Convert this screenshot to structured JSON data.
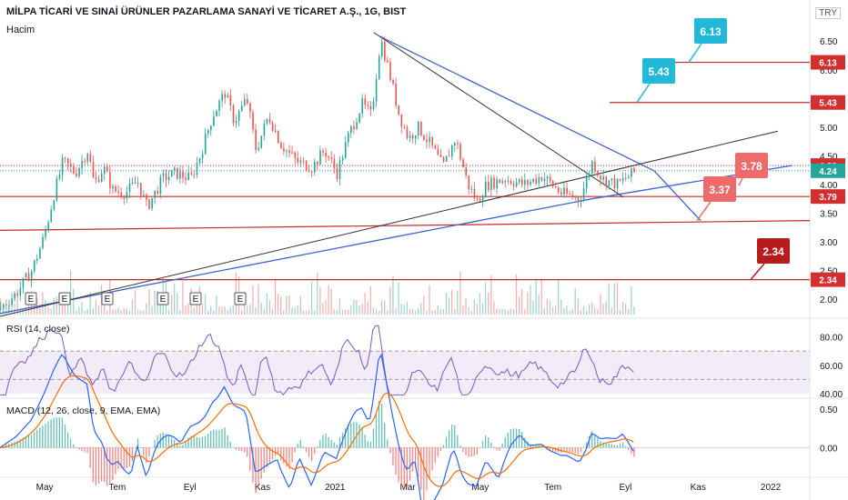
{
  "header": {
    "title": "MİLPA TİCARİ VE SINAİ ÜRÜNLER PAZARLAMA SANAYİ VE TİCARET A.Ş., 1G, BIST",
    "volume_label": "Hacim",
    "currency": "TRY"
  },
  "panes": {
    "rsi_label": "RSI (14, close)",
    "macd_label": "MACD (12, 26, close, 9, EMA, EMA)"
  },
  "chart_data": {
    "type": "line",
    "price_axis": {
      "ticks": [
        "6.50",
        "6.00",
        "5.50",
        "5.00",
        "4.50",
        "4.00",
        "3.50",
        "3.00",
        "2.50",
        "2.00"
      ],
      "range": [
        1.7,
        6.9
      ]
    },
    "rsi_axis": {
      "ticks": [
        "80.00",
        "60.00",
        "40.00"
      ],
      "range": [
        38,
        92
      ],
      "bands": [
        70,
        50
      ]
    },
    "macd_axis": {
      "ticks": [
        "0.50",
        "0.00"
      ],
      "range": [
        -0.35,
        0.62
      ]
    },
    "time_axis": [
      "May",
      "Tem",
      "Eyl",
      "Kas",
      "2021",
      "Mar",
      "May",
      "Tem",
      "Eyl",
      "Kas",
      "2022"
    ],
    "price_series": [
      {
        "t": 0,
        "v": 1.85
      },
      {
        "t": 5,
        "v": 2.1
      },
      {
        "t": 10,
        "v": 2.5
      },
      {
        "t": 14,
        "v": 3.1
      },
      {
        "t": 17,
        "v": 3.8
      },
      {
        "t": 20,
        "v": 4.4
      },
      {
        "t": 24,
        "v": 4.2
      },
      {
        "t": 28,
        "v": 4.6
      },
      {
        "t": 30,
        "v": 4.0
      },
      {
        "t": 33,
        "v": 4.3
      },
      {
        "t": 36,
        "v": 3.9
      },
      {
        "t": 40,
        "v": 3.85
      },
      {
        "t": 44,
        "v": 4.05
      },
      {
        "t": 47,
        "v": 3.6
      },
      {
        "t": 52,
        "v": 4.1
      },
      {
        "t": 56,
        "v": 4.2
      },
      {
        "t": 61,
        "v": 4.1
      },
      {
        "t": 64,
        "v": 4.5
      },
      {
        "t": 68,
        "v": 5.2
      },
      {
        "t": 72,
        "v": 5.6
      },
      {
        "t": 75,
        "v": 5.1
      },
      {
        "t": 79,
        "v": 5.5
      },
      {
        "t": 82,
        "v": 4.6
      },
      {
        "t": 86,
        "v": 5.2
      },
      {
        "t": 90,
        "v": 4.7
      },
      {
        "t": 95,
        "v": 4.4
      },
      {
        "t": 100,
        "v": 4.3
      },
      {
        "t": 104,
        "v": 4.6
      },
      {
        "t": 108,
        "v": 4.2
      },
      {
        "t": 112,
        "v": 4.9
      },
      {
        "t": 116,
        "v": 5.4
      },
      {
        "t": 119,
        "v": 5.2
      },
      {
        "t": 122,
        "v": 6.55
      },
      {
        "t": 125,
        "v": 5.9
      },
      {
        "t": 128,
        "v": 5.2
      },
      {
        "t": 131,
        "v": 4.8
      },
      {
        "t": 134,
        "v": 5.0
      },
      {
        "t": 138,
        "v": 4.7
      },
      {
        "t": 142,
        "v": 4.3
      },
      {
        "t": 146,
        "v": 4.8
      },
      {
        "t": 150,
        "v": 4.0
      },
      {
        "t": 153,
        "v": 3.7
      },
      {
        "t": 156,
        "v": 4.0
      },
      {
        "t": 162,
        "v": 4.1
      },
      {
        "t": 168,
        "v": 4.0
      },
      {
        "t": 174,
        "v": 4.15
      },
      {
        "t": 180,
        "v": 3.85
      },
      {
        "t": 186,
        "v": 3.75
      },
      {
        "t": 190,
        "v": 4.4
      },
      {
        "t": 193,
        "v": 4.1
      },
      {
        "t": 198,
        "v": 4.0
      },
      {
        "t": 204,
        "v": 4.24
      }
    ],
    "price_labels": [
      {
        "text": "6.13",
        "value": 6.13,
        "color": "#d32f2f",
        "callout": "6.13",
        "callout_color": "#22b8d8"
      },
      {
        "text": "5.43",
        "value": 5.43,
        "color": "#d32f2f",
        "callout": "5.43",
        "callout_color": "#22b8d8"
      },
      {
        "text": "4.33",
        "value": 4.33,
        "color": "#d32f2f"
      },
      {
        "text": "4.24",
        "value": 4.24,
        "color": "#26a69a"
      },
      {
        "text": "3.79",
        "value": 3.79,
        "color": "#d32f2f",
        "callout": "3.78",
        "callout_color": "#ef6b6b"
      },
      {
        "text": "2.34",
        "value": 2.34,
        "color": "#d32f2f",
        "callout": "2.34",
        "callout_color": "#b71c1c"
      }
    ],
    "extra_callouts": [
      {
        "text": "3.37",
        "color": "#ef6b6b"
      }
    ],
    "earnings_markers": [
      "E",
      "E",
      "E",
      "E",
      "E",
      "E"
    ],
    "colors": {
      "up": "#26a69a",
      "down": "#ef5350",
      "trend_blue": "#3f63c9",
      "trend_black": "#333333",
      "hline": "#c62828",
      "rsi": "#7e57c2",
      "macd": "#2962ff",
      "signal": "#ff6d00"
    }
  }
}
